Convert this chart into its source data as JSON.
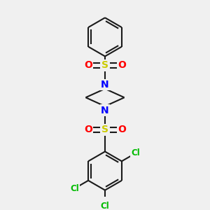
{
  "background_color": "#f0f0f0",
  "bond_color": "#1a1a1a",
  "N_color": "#0000ff",
  "S_color": "#cccc00",
  "O_color": "#ff0000",
  "Cl_color": "#00bb00",
  "lw": 1.5,
  "figsize": [
    3.0,
    3.0
  ],
  "dpi": 100,
  "xlim": [
    -2.5,
    2.5
  ],
  "ylim": [
    -3.8,
    3.8
  ]
}
